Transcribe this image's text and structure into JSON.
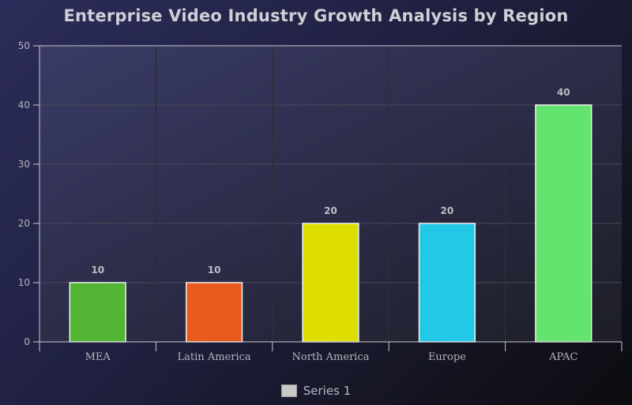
{
  "chart_data": {
    "type": "bar",
    "title": "Enterprise Video Industry Growth Analysis by Region",
    "categories": [
      "MEA",
      "Latin America",
      "North America",
      "Europe",
      "APAC"
    ],
    "series": [
      {
        "name": "Series 1",
        "values": [
          10,
          10,
          20,
          20,
          40
        ],
        "colors": [
          "#52b534",
          "#ea5a1c",
          "#dedd00",
          "#22c9e6",
          "#63e46e"
        ]
      }
    ],
    "xlabel": "",
    "ylabel": "",
    "ylim": [
      0,
      50
    ],
    "yticks": [
      0,
      10,
      20,
      30,
      40,
      50
    ],
    "grid": true,
    "legend_position": "bottom-center",
    "legend_swatch_color": "#c8c8c8"
  }
}
